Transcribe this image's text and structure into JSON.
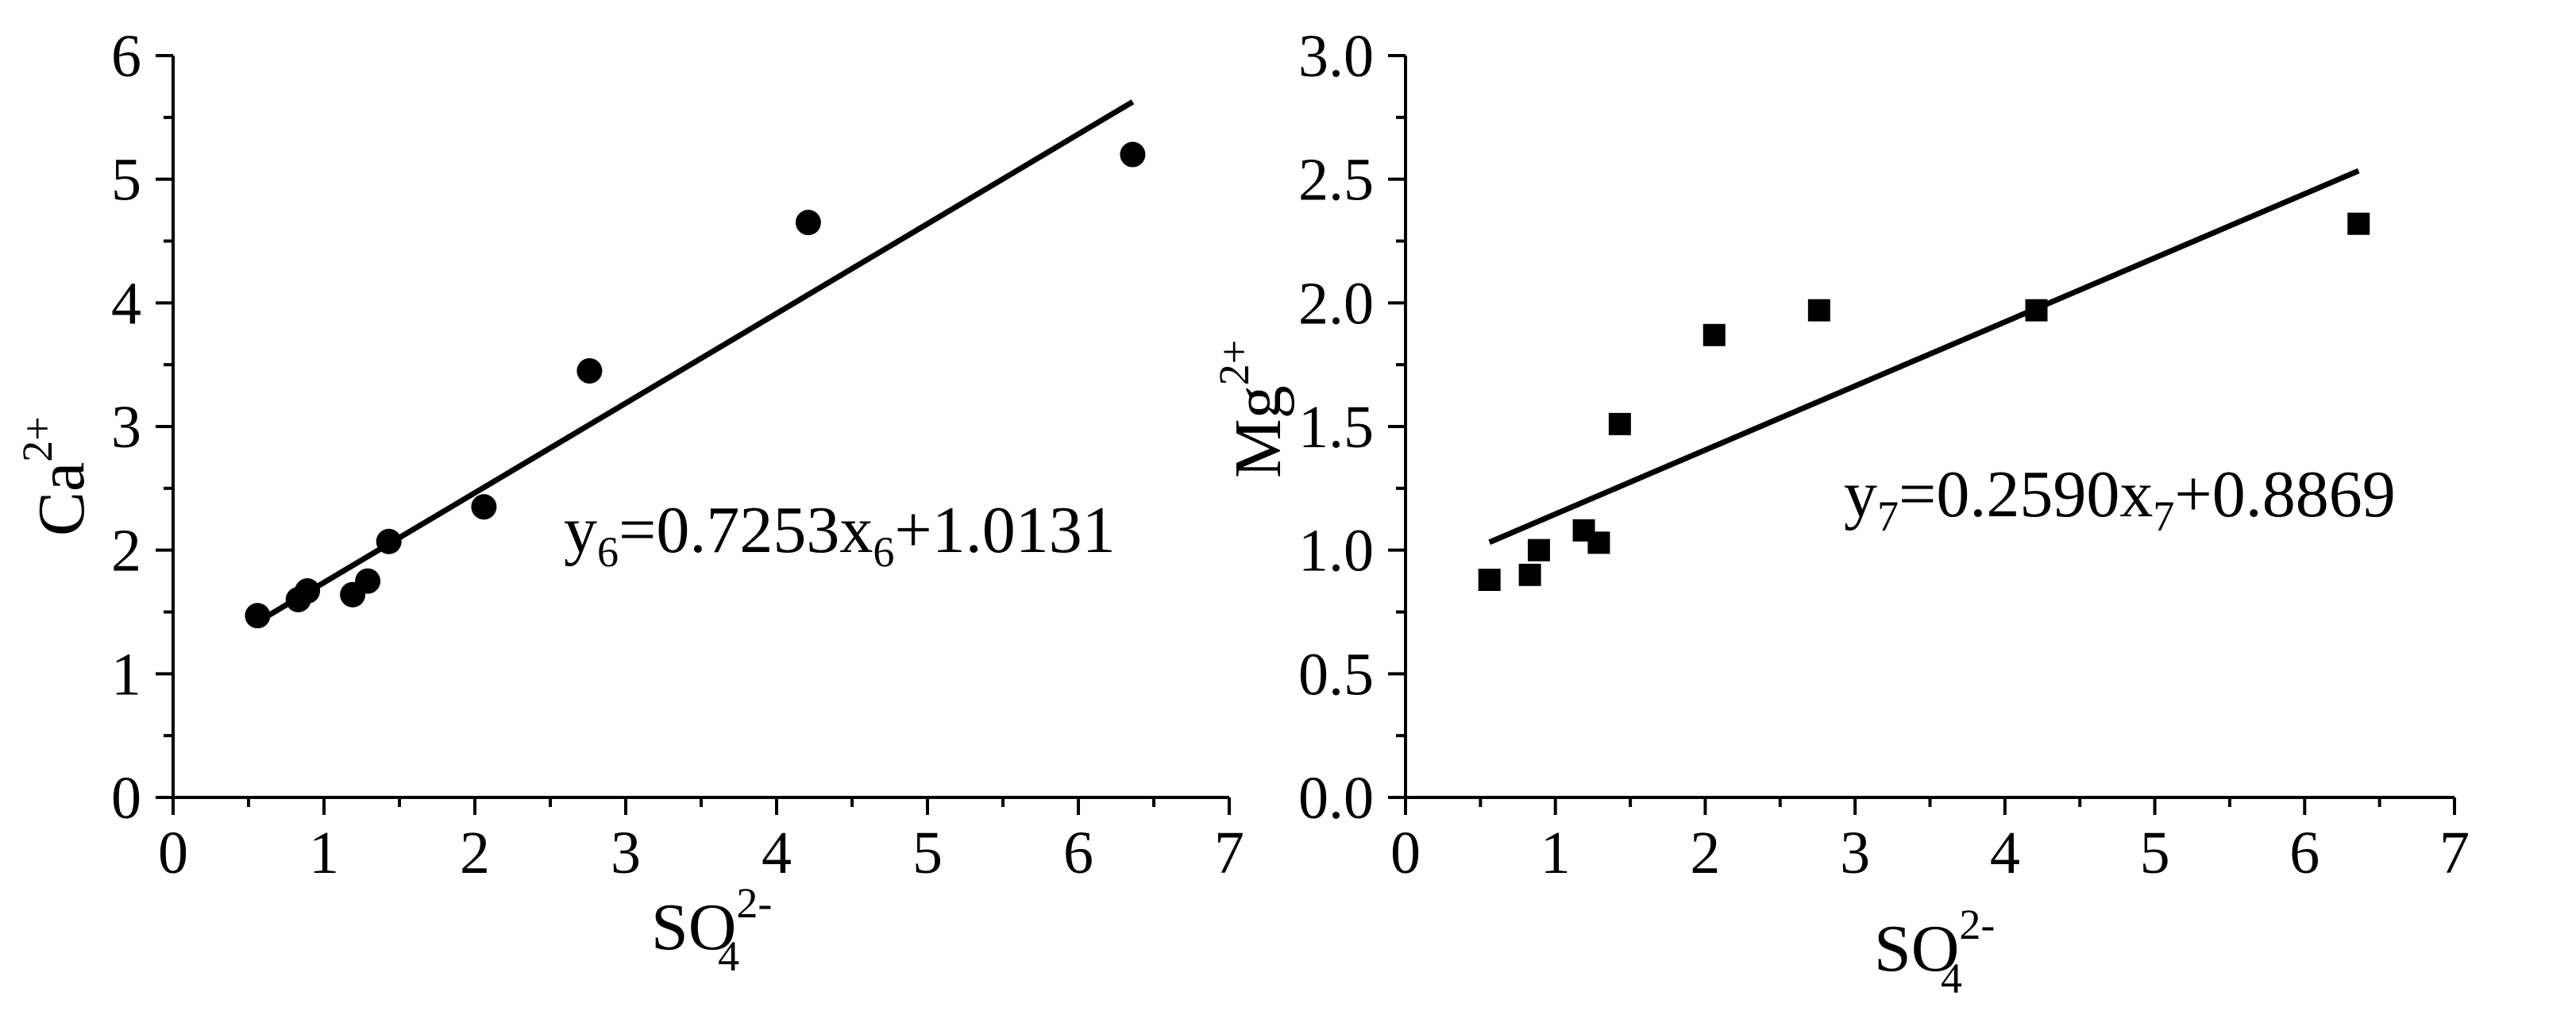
{
  "chart_data": [
    {
      "type": "scatter",
      "xlabel": {
        "base": "SO",
        "sub": "4",
        "sup": "2-"
      },
      "ylabel": {
        "base": "Ca",
        "sup": "2+"
      },
      "xlim": [
        0,
        7
      ],
      "ylim": [
        0,
        6
      ],
      "x_ticks": [
        "0",
        "1",
        "2",
        "3",
        "4",
        "5",
        "6",
        "7"
      ],
      "y_ticks": [
        "0",
        "1",
        "2",
        "3",
        "4",
        "5",
        "6"
      ],
      "marker": "circle",
      "color": "#000000",
      "grid": false,
      "points": [
        {
          "x": 0.56,
          "y": 1.47
        },
        {
          "x": 0.83,
          "y": 1.6
        },
        {
          "x": 0.89,
          "y": 1.67
        },
        {
          "x": 1.19,
          "y": 1.64
        },
        {
          "x": 1.29,
          "y": 1.75
        },
        {
          "x": 1.43,
          "y": 2.07
        },
        {
          "x": 2.06,
          "y": 2.35
        },
        {
          "x": 2.76,
          "y": 3.45
        },
        {
          "x": 4.21,
          "y": 4.65
        },
        {
          "x": 6.36,
          "y": 5.2
        }
      ],
      "fit": {
        "slope": 0.7253,
        "intercept": 1.0131,
        "x_range": [
          0.56,
          6.36
        ]
      },
      "equation": {
        "y": "y",
        "y_sub": "6",
        "mid": "=0.7253x",
        "x_sub": "6",
        "tail": "+1.0131"
      }
    },
    {
      "type": "scatter",
      "xlabel": {
        "base": "SO",
        "sub": "4",
        "sup": "2-"
      },
      "ylabel": {
        "base": "Mg",
        "sup": "2+"
      },
      "xlim": [
        0,
        7
      ],
      "ylim": [
        0,
        3.0
      ],
      "x_ticks": [
        "0",
        "1",
        "2",
        "3",
        "4",
        "5",
        "6",
        "7"
      ],
      "y_ticks": [
        "0.0",
        "0.5",
        "1.0",
        "1.5",
        "2.0",
        "2.5",
        "3.0"
      ],
      "marker": "square",
      "color": "#000000",
      "grid": false,
      "points": [
        {
          "x": 0.56,
          "y": 0.88
        },
        {
          "x": 0.83,
          "y": 0.9
        },
        {
          "x": 0.89,
          "y": 1.0
        },
        {
          "x": 1.19,
          "y": 1.08
        },
        {
          "x": 1.29,
          "y": 1.03
        },
        {
          "x": 1.43,
          "y": 1.51
        },
        {
          "x": 2.06,
          "y": 1.87
        },
        {
          "x": 2.76,
          "y": 1.97
        },
        {
          "x": 4.21,
          "y": 1.97
        },
        {
          "x": 6.36,
          "y": 2.32
        }
      ],
      "fit": {
        "slope": 0.259,
        "intercept": 0.8869,
        "x_range": [
          0.56,
          6.36
        ]
      },
      "equation": {
        "y": "y",
        "y_sub": "7",
        "mid": "=0.2590x",
        "x_sub": "7",
        "tail": "+0.8869"
      }
    }
  ]
}
